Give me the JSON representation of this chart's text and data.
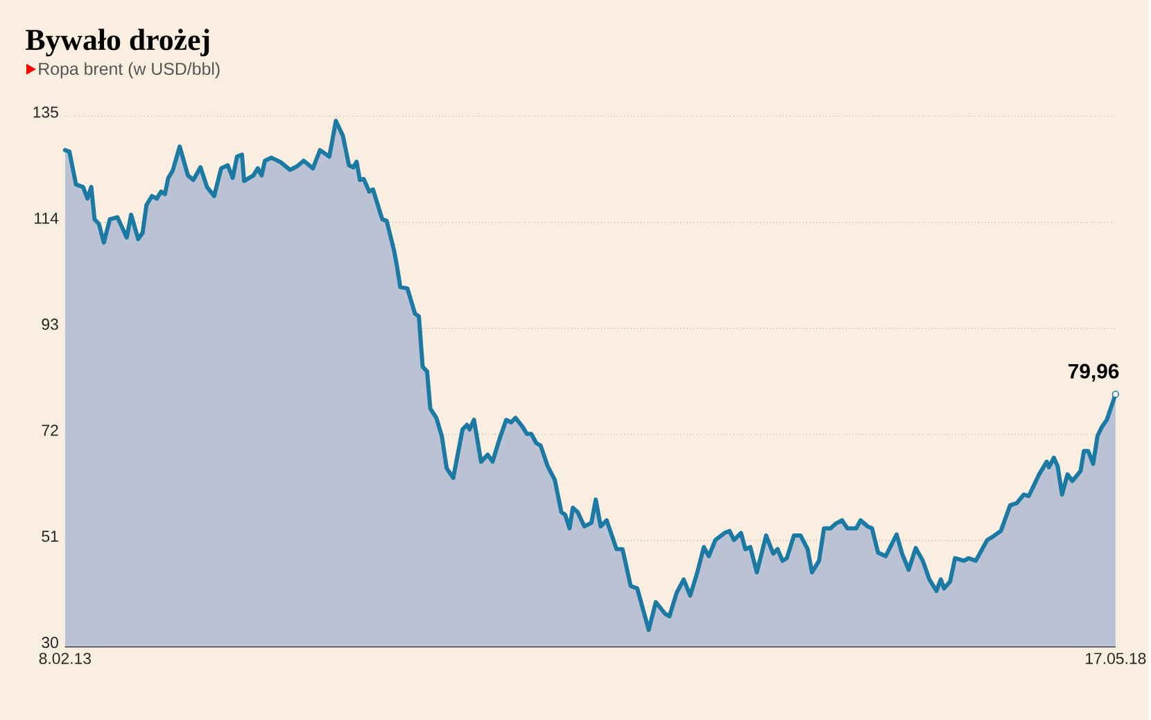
{
  "chart_data": {
    "type": "area",
    "title": "Bywało drożej",
    "subtitle": "Ropa brent (w USD/bbl)",
    "x": [
      "2013-02-08",
      "2013-02-16",
      "2013-02-28",
      "2013-03-13",
      "2013-03-21",
      "2013-03-28",
      "2013-04-03",
      "2013-04-11",
      "2013-04-20",
      "2013-05-01",
      "2013-05-15",
      "2013-06-01",
      "2013-06-09",
      "2013-06-22",
      "2013-06-30",
      "2013-07-07",
      "2013-07-17",
      "2013-07-26",
      "2013-08-03",
      "2013-08-10",
      "2013-08-16",
      "2013-08-24",
      "2013-09-06",
      "2013-09-21",
      "2013-10-01",
      "2013-10-14",
      "2013-10-26",
      "2013-11-08",
      "2013-11-21",
      "2013-12-03",
      "2013-12-12",
      "2013-12-20",
      "2013-12-29",
      "2014-01-02",
      "2014-01-19",
      "2014-01-27",
      "2014-02-03",
      "2014-02-09",
      "2014-02-21",
      "2014-03-10",
      "2014-03-27",
      "2014-04-09",
      "2014-04-21",
      "2014-05-08",
      "2014-05-21",
      "2014-06-07",
      "2014-06-19",
      "2014-07-02",
      "2014-07-13",
      "2014-07-21",
      "2014-07-27",
      "2014-08-02",
      "2014-08-09",
      "2014-08-19",
      "2014-08-26",
      "2014-09-12",
      "2014-09-20",
      "2014-10-03",
      "2014-10-08",
      "2014-10-15",
      "2014-10-28",
      "2014-11-11",
      "2014-11-18",
      "2014-11-25",
      "2014-12-03",
      "2014-12-09",
      "2014-12-20",
      "2014-12-30",
      "2015-01-08",
      "2015-01-20",
      "2015-01-29",
      "2015-02-06",
      "2015-02-14",
      "2015-02-19",
      "2015-02-27",
      "2015-03-12",
      "2015-03-24",
      "2015-04-02",
      "2015-04-15",
      "2015-04-27",
      "2015-05-06",
      "2015-05-14",
      "2015-05-27",
      "2015-06-04",
      "2015-06-12",
      "2015-06-21",
      "2015-06-29",
      "2015-07-12",
      "2015-07-25",
      "2015-08-06",
      "2015-08-13",
      "2015-08-21",
      "2015-08-27",
      "2015-09-05",
      "2015-09-17",
      "2015-09-30",
      "2015-10-08",
      "2015-10-17",
      "2015-10-28",
      "2015-11-15",
      "2015-11-26",
      "2015-12-11",
      "2015-12-23",
      "2016-01-13",
      "2016-01-26",
      "2016-02-12",
      "2016-02-20",
      "2016-03-04",
      "2016-03-17",
      "2016-03-29",
      "2016-04-11",
      "2016-04-23",
      "2016-05-02",
      "2016-05-14",
      "2016-05-31",
      "2016-06-09",
      "2016-06-17",
      "2016-06-30",
      "2016-07-08",
      "2016-07-17",
      "2016-07-29",
      "2016-08-15",
      "2016-08-28",
      "2016-09-05",
      "2016-09-14",
      "2016-09-22",
      "2016-10-05",
      "2016-10-17",
      "2016-10-30",
      "2016-11-07",
      "2016-11-20",
      "2016-11-29",
      "2016-12-11",
      "2016-12-20",
      "2017-01-01",
      "2017-01-11",
      "2017-01-27",
      "2017-02-04",
      "2017-02-17",
      "2017-02-25",
      "2017-03-08",
      "2017-03-22",
      "2017-04-11",
      "2017-04-21",
      "2017-05-03",
      "2017-05-16",
      "2017-05-29",
      "2017-06-10",
      "2017-06-23",
      "2017-07-01",
      "2017-07-07",
      "2017-07-18",
      "2017-07-27",
      "2017-08-12",
      "2017-08-21",
      "2017-09-03",
      "2017-09-24",
      "2017-10-02",
      "2017-10-19",
      "2017-11-05",
      "2017-11-17",
      "2017-11-30",
      "2017-12-09",
      "2017-12-28",
      "2018-01-11",
      "2018-01-15",
      "2018-01-24",
      "2018-01-31",
      "2018-02-08",
      "2018-02-18",
      "2018-02-27",
      "2018-03-14",
      "2018-03-20",
      "2018-03-28",
      "2018-04-06",
      "2018-04-14",
      "2018-04-22",
      "2018-05-01",
      "2018-05-17"
    ],
    "values": [
      128.3,
      128.0,
      121.5,
      121.0,
      118.7,
      121.0,
      114.6,
      113.7,
      110.0,
      114.6,
      115.0,
      111.0,
      115.5,
      110.7,
      111.9,
      117.4,
      119.2,
      118.7,
      120.1,
      119.6,
      122.8,
      124.2,
      129.0,
      123.3,
      122.4,
      124.9,
      121.0,
      119.2,
      124.7,
      125.3,
      122.8,
      127.0,
      127.4,
      122.2,
      123.3,
      124.7,
      123.3,
      126.2,
      126.8,
      125.9,
      124.4,
      125.1,
      126.2,
      124.7,
      128.3,
      127.0,
      134.1,
      131.1,
      125.3,
      124.9,
      126.0,
      122.4,
      122.6,
      120.1,
      120.5,
      114.6,
      114.3,
      108.7,
      105.9,
      101.2,
      100.9,
      95.9,
      95.4,
      85.4,
      84.5,
      77.1,
      75.3,
      71.7,
      65.3,
      63.4,
      68.5,
      73.0,
      73.9,
      73.0,
      74.9,
      66.6,
      68.0,
      66.6,
      71.2,
      74.9,
      74.4,
      75.3,
      73.5,
      72.1,
      72.1,
      70.3,
      69.8,
      65.7,
      63.0,
      56.6,
      56.1,
      53.4,
      57.5,
      56.6,
      53.8,
      54.5,
      59.1,
      53.8,
      55.0,
      49.3,
      49.3,
      42.0,
      41.5,
      33.3,
      38.8,
      36.5,
      36.0,
      40.6,
      43.3,
      40.1,
      44.7,
      49.7,
      47.9,
      51.1,
      52.5,
      52.9,
      51.1,
      52.5,
      49.3,
      49.7,
      44.7,
      52.0,
      48.4,
      49.3,
      47.0,
      47.5,
      52.0,
      52.0,
      49.3,
      44.7,
      47.0,
      53.4,
      53.4,
      54.3,
      55.0,
      53.4,
      53.4,
      55.0,
      53.8,
      53.4,
      48.6,
      47.9,
      52.2,
      48.4,
      45.2,
      49.5,
      47.0,
      43.3,
      41.0,
      43.3,
      41.5,
      42.9,
      47.5,
      47.0,
      47.5,
      47.0,
      51.1,
      51.6,
      52.9,
      58.0,
      58.4,
      60.1,
      59.8,
      64.1,
      66.6,
      65.5,
      67.4,
      65.7,
      60.1,
      64.1,
      62.8,
      64.8,
      68.7,
      68.7,
      66.2,
      71.7,
      73.5,
      74.9,
      79.96
    ],
    "color": "#1b7aa3",
    "xlim": [
      "2013-02-08",
      "2018-05-17"
    ],
    "xticks": [
      {
        "value": "2013-02-08",
        "label": "8.02.13"
      },
      {
        "value": "2018-05-17",
        "label": "17.05.18"
      }
    ],
    "ylim": [
      30,
      135
    ],
    "yticks": [
      30,
      51,
      72,
      93,
      114,
      135
    ],
    "grid": "y",
    "annotations": [
      {
        "text": "79,96",
        "x": "2018-05-17",
        "y": 79.96
      }
    ]
  }
}
